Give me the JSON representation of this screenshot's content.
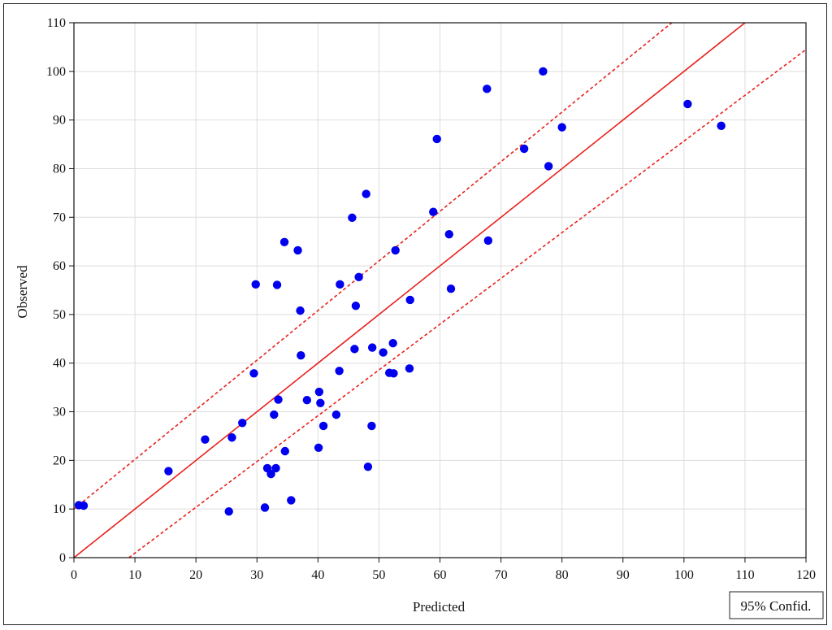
{
  "chart_data": {
    "type": "scatter",
    "xlabel": "Predicted",
    "ylabel": "Observed",
    "xlim": [
      0,
      120
    ],
    "ylim": [
      0,
      110
    ],
    "xticks": [
      0,
      10,
      20,
      30,
      40,
      50,
      60,
      70,
      80,
      90,
      100,
      110,
      120
    ],
    "yticks": [
      0,
      10,
      20,
      30,
      40,
      50,
      60,
      70,
      80,
      90,
      100,
      110
    ],
    "grid": true,
    "legend": {
      "text": "95% Confid.",
      "placement": "bottom-right"
    },
    "colors": {
      "points": "#0000ee",
      "fit_line": "#e8201c",
      "conf_band": "#e8201c",
      "grid": "#dddddd"
    },
    "fit_line": {
      "slope": 1.0,
      "intercept": 0.0
    },
    "confidence_band": {
      "upper": [
        [
          0,
          10.0
        ],
        [
          98,
          110
        ]
      ],
      "lower": [
        [
          9,
          0
        ],
        [
          120,
          104.5
        ]
      ]
    },
    "points": [
      [
        0.8,
        10.8
      ],
      [
        1.6,
        10.7
      ],
      [
        15.5,
        17.8
      ],
      [
        21.5,
        24.3
      ],
      [
        25.4,
        9.5
      ],
      [
        25.9,
        24.7
      ],
      [
        27.6,
        27.7
      ],
      [
        29.5,
        37.9
      ],
      [
        29.8,
        56.2
      ],
      [
        31.3,
        10.3
      ],
      [
        31.7,
        18.4
      ],
      [
        32.3,
        17.2
      ],
      [
        32.8,
        29.4
      ],
      [
        33.1,
        18.4
      ],
      [
        33.3,
        56.1
      ],
      [
        33.5,
        32.5
      ],
      [
        34.5,
        64.9
      ],
      [
        34.6,
        21.9
      ],
      [
        35.6,
        11.8
      ],
      [
        36.7,
        63.2
      ],
      [
        37.1,
        50.8
      ],
      [
        37.2,
        41.6
      ],
      [
        38.2,
        32.4
      ],
      [
        40.1,
        22.6
      ],
      [
        40.2,
        34.1
      ],
      [
        40.4,
        31.8
      ],
      [
        40.9,
        27.1
      ],
      [
        43.0,
        29.4
      ],
      [
        43.5,
        38.4
      ],
      [
        43.6,
        56.2
      ],
      [
        45.6,
        69.9
      ],
      [
        46.0,
        42.9
      ],
      [
        46.2,
        51.8
      ],
      [
        46.7,
        57.7
      ],
      [
        47.9,
        74.8
      ],
      [
        48.2,
        18.7
      ],
      [
        48.8,
        27.1
      ],
      [
        48.9,
        43.2
      ],
      [
        50.7,
        42.2
      ],
      [
        51.7,
        38.0
      ],
      [
        52.3,
        44.1
      ],
      [
        52.4,
        37.9
      ],
      [
        52.7,
        63.2
      ],
      [
        55.0,
        38.9
      ],
      [
        55.1,
        53.0
      ],
      [
        58.9,
        71.1
      ],
      [
        59.5,
        86.1
      ],
      [
        61.5,
        66.5
      ],
      [
        61.8,
        55.3
      ],
      [
        67.7,
        96.4
      ],
      [
        67.9,
        65.2
      ],
      [
        73.8,
        84.1
      ],
      [
        76.9,
        100.0
      ],
      [
        77.8,
        80.5
      ],
      [
        80.0,
        88.5
      ],
      [
        100.6,
        93.3
      ],
      [
        106.1,
        88.8
      ]
    ]
  }
}
